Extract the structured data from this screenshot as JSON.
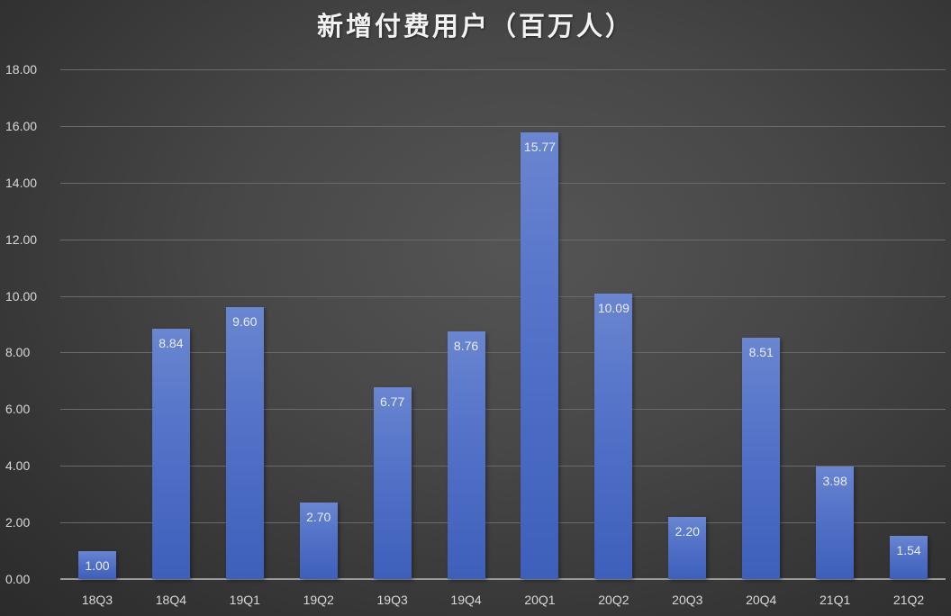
{
  "chart_data": {
    "type": "bar",
    "title": "新增付费用户（百万人）",
    "xlabel": "",
    "ylabel": "",
    "categories": [
      "18Q3",
      "18Q4",
      "19Q1",
      "19Q2",
      "19Q3",
      "19Q4",
      "20Q1",
      "20Q2",
      "20Q3",
      "20Q4",
      "21Q1",
      "21Q2"
    ],
    "values": [
      1.0,
      8.84,
      9.6,
      2.7,
      6.77,
      8.76,
      15.77,
      10.09,
      2.2,
      8.51,
      3.98,
      1.54
    ],
    "value_labels": [
      "1.00",
      "8.84",
      "9.60",
      "2.70",
      "6.77",
      "8.76",
      "15.77",
      "10.09",
      "2.20",
      "8.51",
      "3.98",
      "1.54"
    ],
    "ylim": [
      0,
      18
    ],
    "yticks": [
      "0.00",
      "2.00",
      "4.00",
      "6.00",
      "8.00",
      "10.00",
      "12.00",
      "14.00",
      "16.00",
      "18.00"
    ],
    "grid": true,
    "legend": null,
    "colors": {
      "bar": "#4a6bc4",
      "background": "#404040",
      "text": "#d9d9d9"
    }
  }
}
